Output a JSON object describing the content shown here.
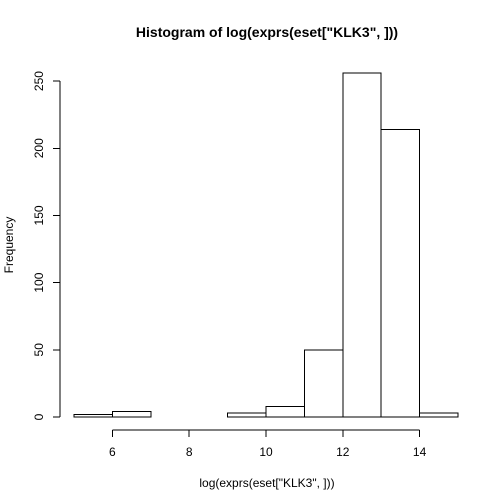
{
  "chart_data": {
    "type": "bar",
    "subtype": "histogram",
    "title": "Histogram of log(exprs(eset[\"KLK3\", ]))",
    "xlabel": "log(exprs(eset[\"KLK3\", ]))",
    "ylabel": "Frequency",
    "bins": [
      {
        "start": 5,
        "end": 6,
        "count": 2
      },
      {
        "start": 6,
        "end": 7,
        "count": 4
      },
      {
        "start": 7,
        "end": 8,
        "count": 0
      },
      {
        "start": 8,
        "end": 9,
        "count": 0
      },
      {
        "start": 9,
        "end": 10,
        "count": 3
      },
      {
        "start": 10,
        "end": 11,
        "count": 8
      },
      {
        "start": 11,
        "end": 12,
        "count": 50
      },
      {
        "start": 12,
        "end": 13,
        "count": 256
      },
      {
        "start": 13,
        "end": 14,
        "count": 214
      },
      {
        "start": 14,
        "end": 15,
        "count": 3
      }
    ],
    "xlim": [
      5,
      15
    ],
    "ylim": [
      0,
      256
    ],
    "xticks": [
      6,
      8,
      10,
      12,
      14
    ],
    "xtick_labels": [
      "6",
      "8",
      "10",
      "12",
      "14"
    ],
    "yticks": [
      0,
      50,
      100,
      150,
      200,
      250
    ],
    "ytick_labels": [
      "0",
      "50",
      "100",
      "150",
      "200",
      "250"
    ],
    "bar_fill": "#ffffff",
    "bar_stroke": "#000000",
    "grid": false,
    "legend": "none"
  }
}
